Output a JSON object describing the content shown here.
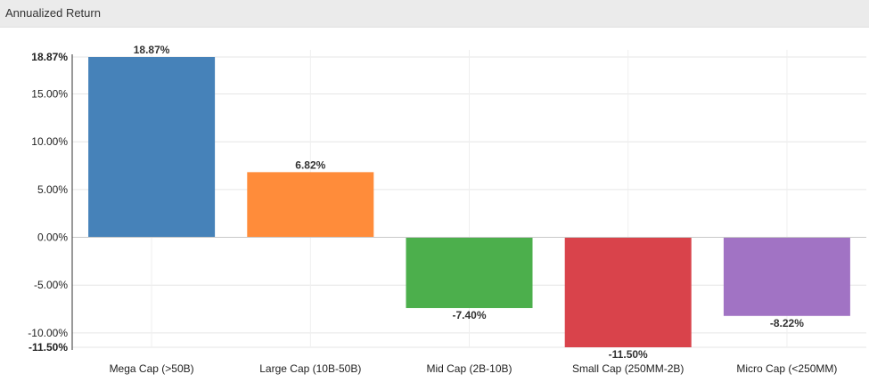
{
  "panel": {
    "title": "Annualized Return"
  },
  "chart_data": {
    "type": "bar",
    "title": "",
    "xlabel": "",
    "ylabel": "",
    "categories": [
      "Mega Cap (>50B)",
      "Large Cap (10B-50B)",
      "Mid Cap (2B-10B)",
      "Small Cap (250MM-2B)",
      "Micro Cap (<250MM)"
    ],
    "values": [
      18.87,
      6.82,
      -7.4,
      -11.5,
      -8.22
    ],
    "data_labels": [
      "18.87%",
      "6.82%",
      "-7.40%",
      "-11.50%",
      "-8.22%"
    ],
    "colors": [
      "#4682b9",
      "#ff8c3a",
      "#4caf4c",
      "#d9434b",
      "#a173c4"
    ],
    "ylim": [
      -11.5,
      18.87
    ],
    "yticks": [
      {
        "value": 18.87,
        "label": "18.87%",
        "bold": true
      },
      {
        "value": 15,
        "label": "15.00%",
        "bold": false
      },
      {
        "value": 10,
        "label": "10.00%",
        "bold": false
      },
      {
        "value": 5,
        "label": "5.00%",
        "bold": false
      },
      {
        "value": 0,
        "label": "0.00%",
        "bold": false
      },
      {
        "value": -5,
        "label": "-5.00%",
        "bold": false
      },
      {
        "value": -10,
        "label": "-10.00%",
        "bold": false
      },
      {
        "value": -11.5,
        "label": "-11.50%",
        "bold": true
      }
    ],
    "grid": true,
    "legend": "none"
  }
}
